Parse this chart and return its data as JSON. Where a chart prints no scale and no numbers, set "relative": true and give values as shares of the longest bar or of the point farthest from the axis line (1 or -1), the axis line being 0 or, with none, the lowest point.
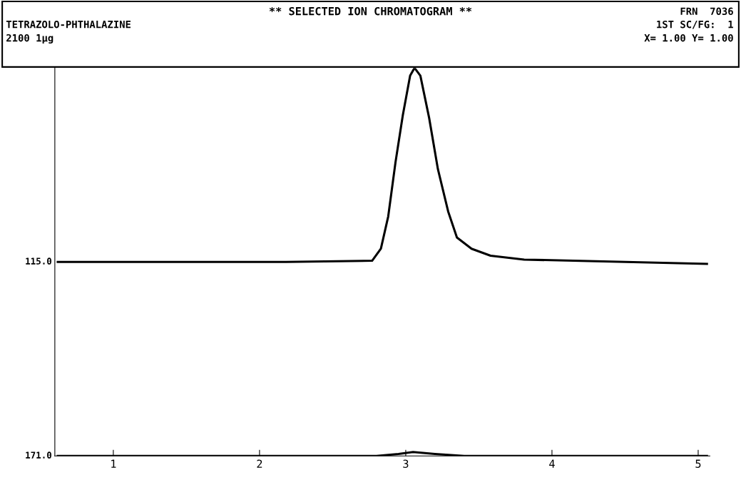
{
  "chart_data": {
    "type": "line",
    "title": "** SELECTED ION CHROMATOGRAM **",
    "relative": true,
    "annotations": [
      "TETRAZOLO-PHTHALAZINE",
      "2100 1µg",
      "FRN  7036",
      "1ST SC/FG:  1",
      "X= 1.00 Y= 1.00"
    ],
    "xlim": [
      0.6,
      5.08
    ],
    "xticks": [
      1,
      2,
      3,
      4,
      5
    ],
    "grid": false,
    "legend": false,
    "marker": "none",
    "line_style": "solid",
    "series": [
      {
        "name": "115.0",
        "color": "#000000",
        "x": [
          0.62,
          2.18,
          2.77,
          2.83,
          2.88,
          2.93,
          2.98,
          3.03,
          3.06,
          3.1,
          3.16,
          3.22,
          3.29,
          3.35,
          3.45,
          3.58,
          3.81,
          5.06
        ],
        "values": [
          0.5,
          0.5,
          0.503,
          0.534,
          0.617,
          0.757,
          0.878,
          0.98,
          1.0,
          0.98,
          0.871,
          0.739,
          0.63,
          0.563,
          0.534,
          0.516,
          0.506,
          0.495
        ]
      },
      {
        "name": "171.0",
        "color": "#000000",
        "x": [
          0.62,
          2.8,
          2.95,
          3.05,
          3.2,
          3.4,
          5.06
        ],
        "values": [
          0,
          0,
          0.005,
          0.01,
          0.005,
          0,
          0
        ]
      }
    ]
  }
}
